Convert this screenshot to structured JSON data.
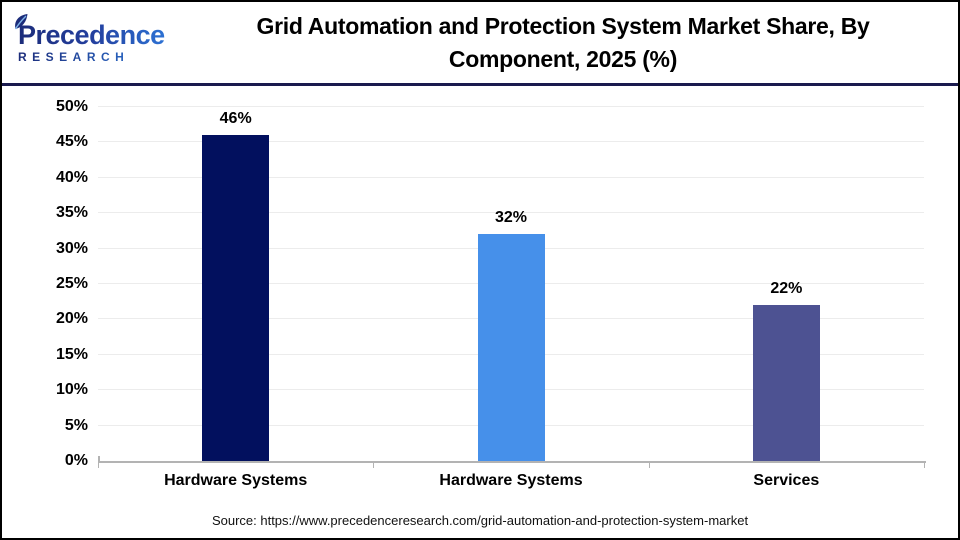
{
  "header": {
    "logo": {
      "brand": "Precedence",
      "subtitle": "RESEARCH"
    },
    "title": "Grid Automation and Protection System Market Share, By Component, 2025 (%)",
    "title_line1": "Grid Automation and Protection System Market Share, By",
    "title_line2": "Component, 2025 (%)"
  },
  "chart_data": {
    "type": "bar",
    "title": "Grid Automation and Protection System Market Share, By Component, 2025 (%)",
    "categories": [
      "Hardware Systems",
      "Hardware Systems",
      "Services"
    ],
    "values": [
      46,
      32,
      22
    ],
    "value_labels": [
      "46%",
      "32%",
      "22%"
    ],
    "bar_colors": [
      "#02105E",
      "#4690EA",
      "#4D5292"
    ],
    "xlabel": "",
    "ylabel": "",
    "ylim": [
      0,
      50
    ],
    "ytick_step": 5,
    "ytick_suffix": "%",
    "grid": true,
    "legend": "none"
  },
  "footer": {
    "source": "Source: https://www.precedenceresearch.com/grid-automation-and-protection-system-market"
  },
  "colors": {
    "page_border": "#000000",
    "header_divider": "#1A1A4E",
    "gridline": "#ECECEC",
    "axis_line": "#B3B3B3",
    "text": "#000000",
    "logo_navy": "#1C2C7A",
    "logo_blue": "#2F7DE0",
    "logo_leaf_light": "#7FB3E8"
  }
}
